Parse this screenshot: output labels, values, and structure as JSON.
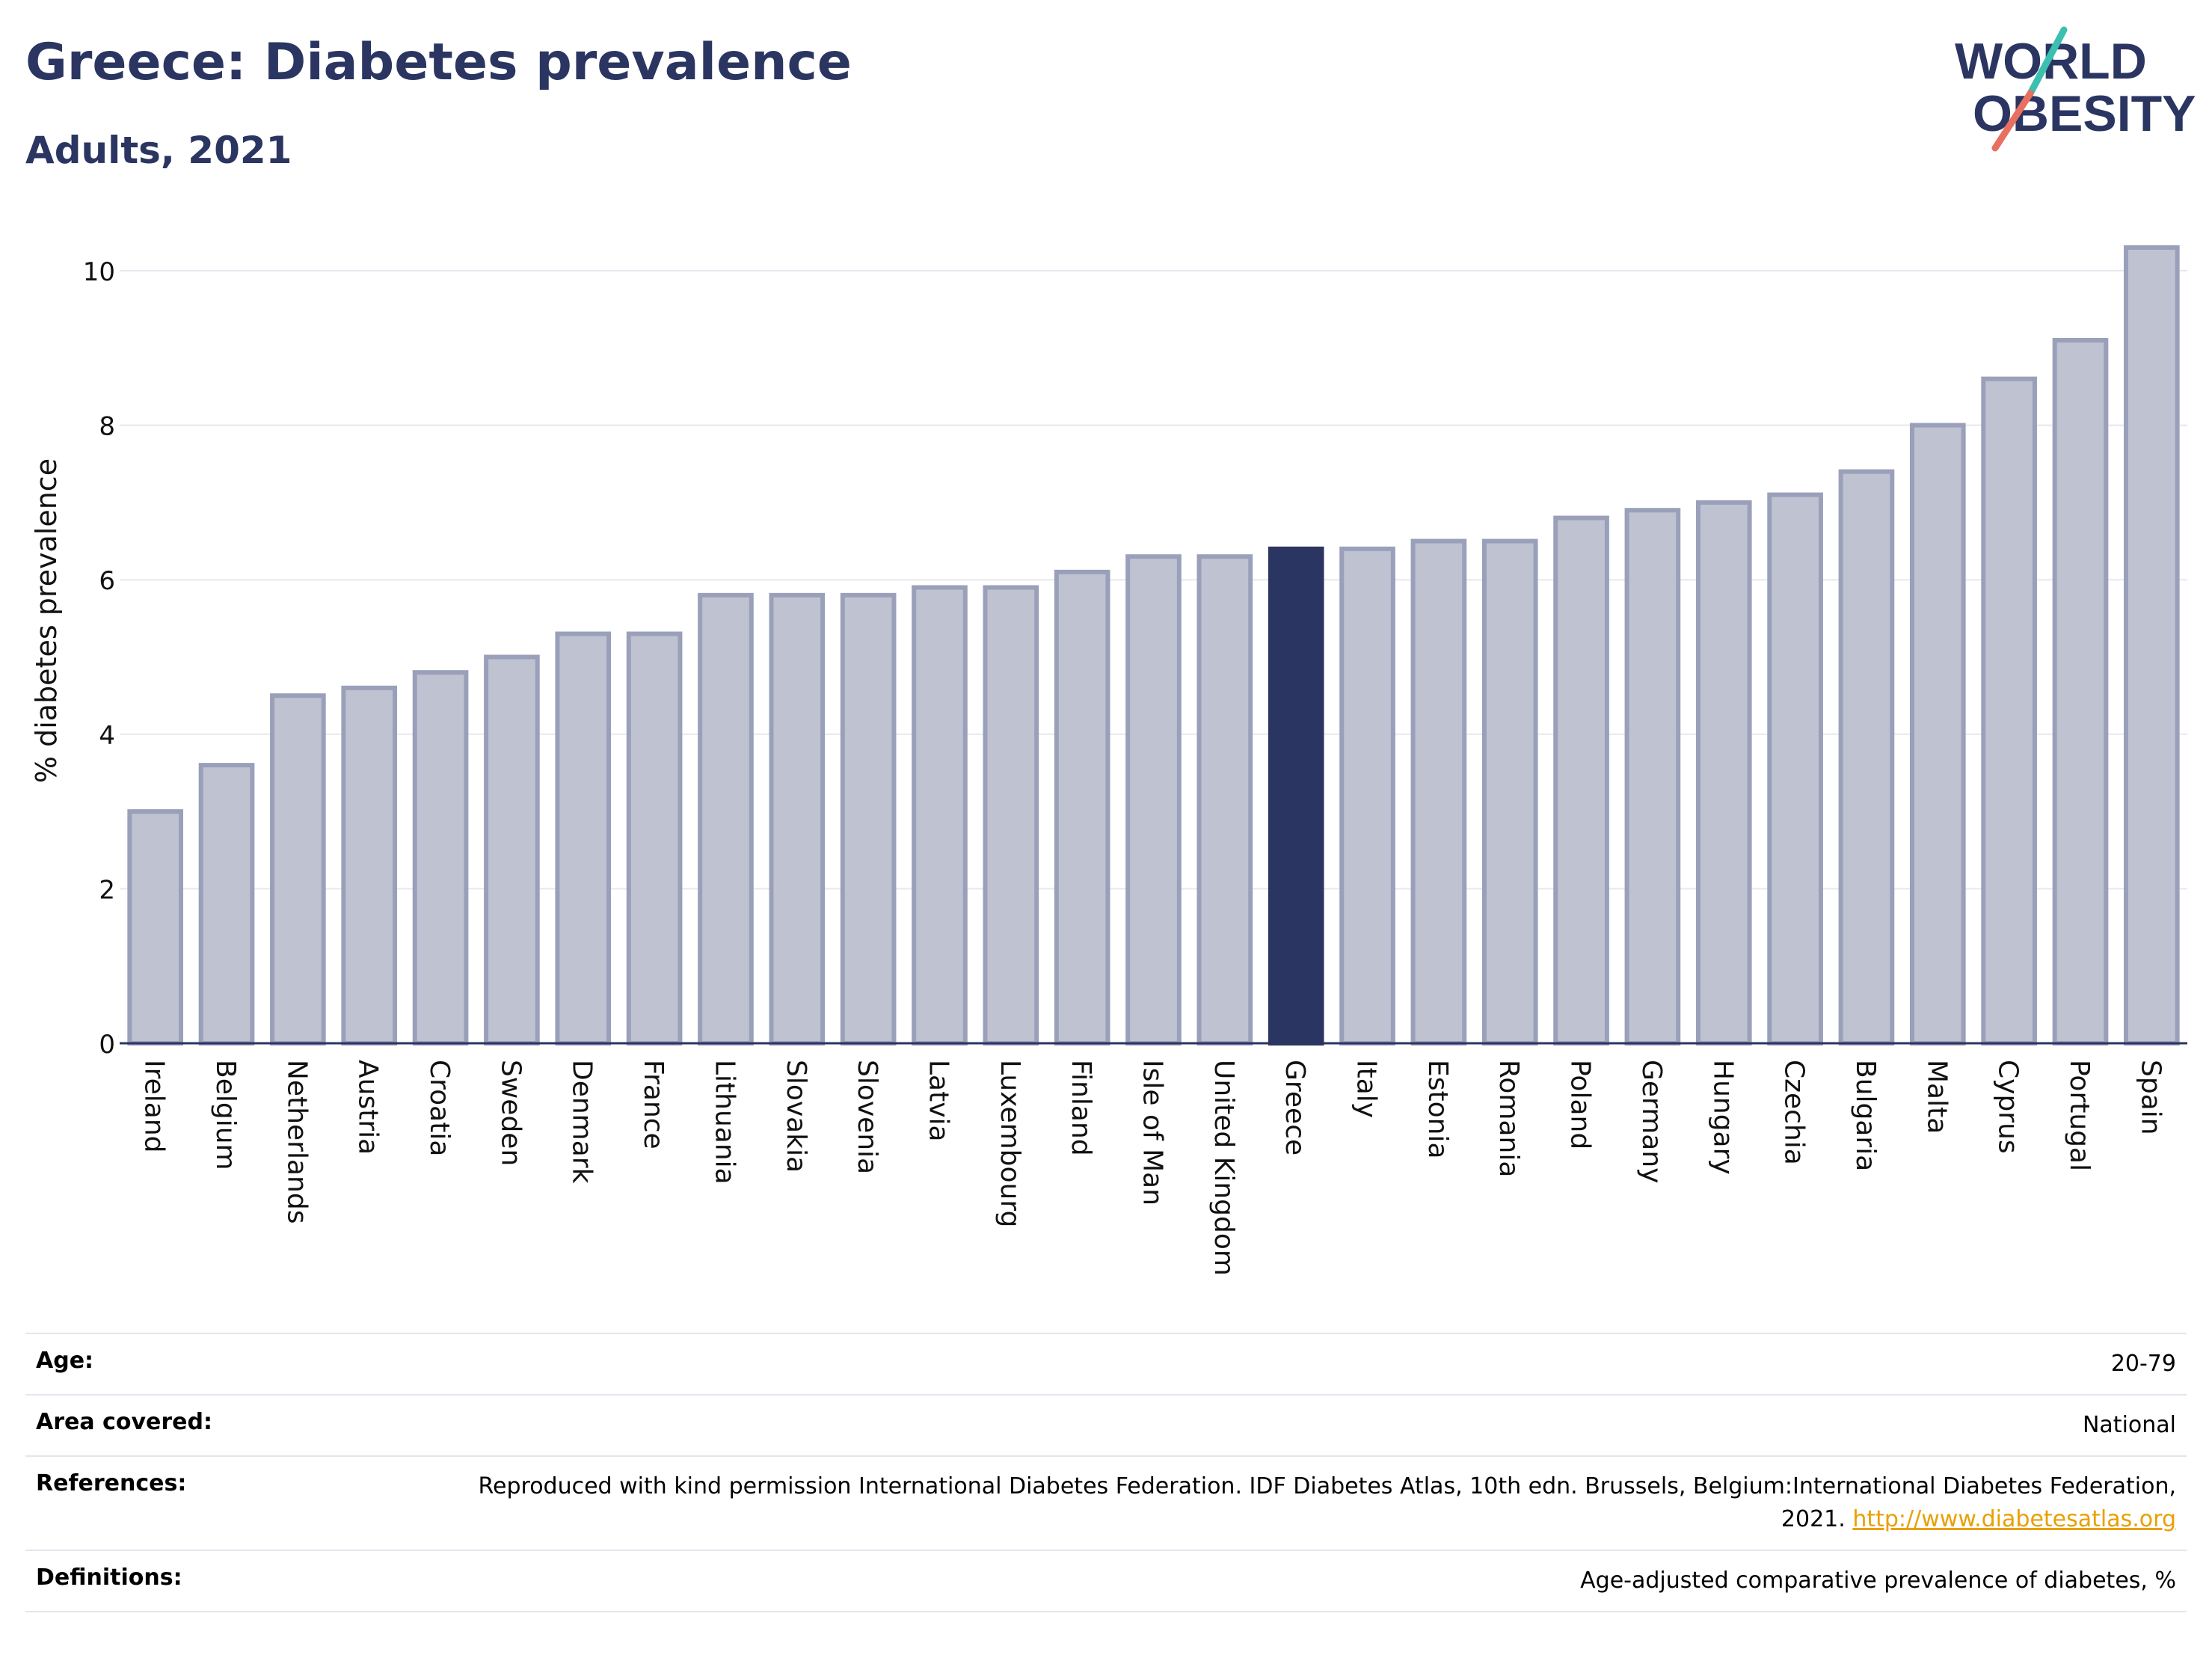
{
  "header": {
    "title": "Greece: Diabetes prevalence",
    "subtitle": "Adults, 2021"
  },
  "logo": {
    "line1": "WORLD",
    "line2": "OBESITY"
  },
  "colors": {
    "highlight": "#2b3561",
    "bar_fill": "#bfc2d0",
    "bar_stroke": "#9aa0ba",
    "title": "#2b3561",
    "link": "#e8a000",
    "logo_teal": "#3bbfb0",
    "logo_coral": "#e87060"
  },
  "chart_data": {
    "type": "bar",
    "ylabel": "% diabetes prevalence",
    "ylim": [
      0,
      10.6
    ],
    "yticks": [
      0,
      2,
      4,
      6,
      8,
      10
    ],
    "highlight": "Greece",
    "grid": true,
    "categories": [
      "Ireland",
      "Belgium",
      "Netherlands",
      "Austria",
      "Croatia",
      "Sweden",
      "Denmark",
      "France",
      "Lithuania",
      "Slovakia",
      "Slovenia",
      "Latvia",
      "Luxembourg",
      "Finland",
      "Isle of Man",
      "United Kingdom",
      "Greece",
      "Italy",
      "Estonia",
      "Romania",
      "Poland",
      "Germany",
      "Hungary",
      "Czechia",
      "Bulgaria",
      "Malta",
      "Cyprus",
      "Portugal",
      "Spain"
    ],
    "values": [
      3.0,
      3.6,
      4.5,
      4.6,
      4.8,
      5.0,
      5.3,
      5.3,
      5.8,
      5.8,
      5.8,
      5.9,
      5.9,
      6.1,
      6.3,
      6.3,
      6.4,
      6.4,
      6.5,
      6.5,
      6.8,
      6.9,
      7.0,
      7.1,
      7.4,
      8.0,
      8.6,
      9.1,
      10.3
    ]
  },
  "info": {
    "age_label": "Age:",
    "age_value": "20-79",
    "area_label": "Area covered:",
    "area_value": "National",
    "references_label": "References:",
    "references_text": "Reproduced with kind permission International Diabetes Federation.  IDF Diabetes Atlas, 10th edn. Brussels, Belgium:International Diabetes Federation, 2021.",
    "references_link": "http://www.diabetesatlas.org",
    "definitions_label": "Definitions:",
    "definitions_value": "Age-adjusted comparative prevalence of diabetes, %"
  }
}
